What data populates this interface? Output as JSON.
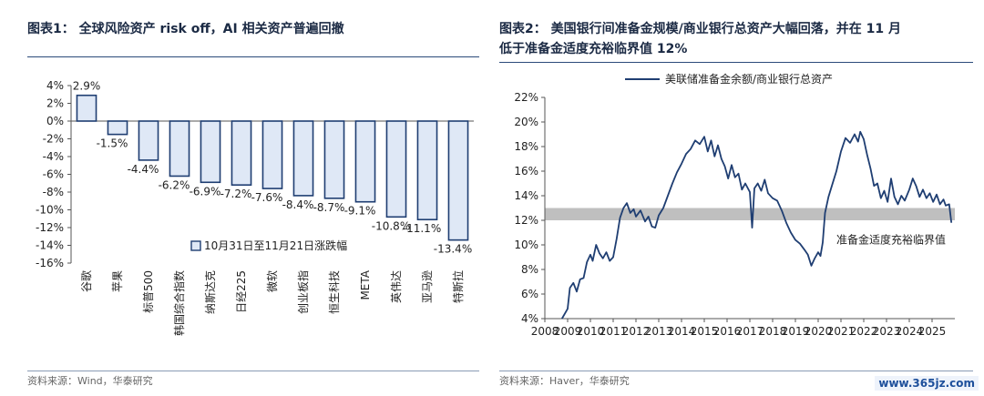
{
  "panels": {
    "left": {
      "title": "图表1： 全球风险资产 risk off，AI 相关资产普遍回撤",
      "source": "资料来源：Wind，华泰研究"
    },
    "right": {
      "title_line1": "图表2： 美国银行间准备金规模/商业银行总资产大幅回落，并在 11 月",
      "title_line2": "低于准备金适度充裕临界值 12%",
      "source": "资料来源：Haver，华泰研究"
    }
  },
  "watermark": "www.365jz.com",
  "colors": {
    "bar_fill": "#dfe8f6",
    "bar_stroke": "#1f3e72",
    "line": "#1f3e72",
    "band": "#bfbfbf"
  },
  "chart_data": [
    {
      "type": "bar",
      "categories": [
        "谷歌",
        "苹果",
        "标普500",
        "韩国综合指数",
        "纳斯达克",
        "日经225",
        "微软",
        "创业板指",
        "恒生科技",
        "META",
        "英伟达",
        "亚马逊",
        "特斯拉"
      ],
      "series": [
        {
          "name": "10月31日至11月21日涨跌幅",
          "values": [
            2.9,
            -1.5,
            -4.4,
            -6.2,
            -6.9,
            -7.2,
            -7.6,
            -8.4,
            -8.7,
            -9.1,
            -10.8,
            -11.1,
            -13.4
          ]
        }
      ],
      "data_labels": [
        "2.9%",
        "-1.5%",
        "-4.4%",
        "-6.2%",
        "-6.9%",
        "-7.2%",
        "-7.6%",
        "-8.4%",
        "-8.7%",
        "-9.1%",
        "-10.8%",
        "-11.1%",
        "-13.4%"
      ],
      "ylim": [
        -16,
        4
      ],
      "yticks": [
        4,
        2,
        0,
        -2,
        -4,
        -6,
        -8,
        -10,
        -12,
        -14,
        -16
      ],
      "ytick_labels": [
        "4%",
        "2%",
        "0%",
        "-2%",
        "-4%",
        "-6%",
        "-8%",
        "-10%",
        "-12%",
        "-14%",
        "-16%"
      ],
      "legend": "bottom-right",
      "grid": false
    },
    {
      "type": "line",
      "series": [
        {
          "name": "美联储准备金余额/商业银行总资产"
        }
      ],
      "points": [
        [
          2008.75,
          4.0
        ],
        [
          2009.0,
          4.8
        ],
        [
          2009.1,
          6.5
        ],
        [
          2009.25,
          6.9
        ],
        [
          2009.4,
          6.2
        ],
        [
          2009.55,
          7.2
        ],
        [
          2009.7,
          7.3
        ],
        [
          2009.85,
          8.6
        ],
        [
          2010.0,
          9.2
        ],
        [
          2010.1,
          8.7
        ],
        [
          2010.25,
          10.0
        ],
        [
          2010.4,
          9.3
        ],
        [
          2010.55,
          8.9
        ],
        [
          2010.7,
          9.4
        ],
        [
          2010.85,
          8.7
        ],
        [
          2011.0,
          9.0
        ],
        [
          2011.15,
          10.5
        ],
        [
          2011.3,
          12.2
        ],
        [
          2011.45,
          13.0
        ],
        [
          2011.6,
          13.4
        ],
        [
          2011.75,
          12.6
        ],
        [
          2011.9,
          12.9
        ],
        [
          2012.0,
          12.3
        ],
        [
          2012.2,
          12.8
        ],
        [
          2012.4,
          11.9
        ],
        [
          2012.55,
          12.3
        ],
        [
          2012.7,
          11.5
        ],
        [
          2012.85,
          11.4
        ],
        [
          2013.0,
          12.4
        ],
        [
          2013.2,
          13.0
        ],
        [
          2013.4,
          14.0
        ],
        [
          2013.6,
          15.0
        ],
        [
          2013.8,
          15.9
        ],
        [
          2014.0,
          16.6
        ],
        [
          2014.2,
          17.4
        ],
        [
          2014.4,
          17.8
        ],
        [
          2014.6,
          18.5
        ],
        [
          2014.8,
          18.2
        ],
        [
          2015.0,
          18.8
        ],
        [
          2015.15,
          17.6
        ],
        [
          2015.3,
          18.5
        ],
        [
          2015.45,
          17.2
        ],
        [
          2015.6,
          18.1
        ],
        [
          2015.75,
          17.0
        ],
        [
          2015.9,
          16.4
        ],
        [
          2016.05,
          15.4
        ],
        [
          2016.2,
          16.5
        ],
        [
          2016.35,
          15.5
        ],
        [
          2016.5,
          15.8
        ],
        [
          2016.65,
          14.5
        ],
        [
          2016.8,
          15.0
        ],
        [
          2017.0,
          14.3
        ],
        [
          2017.1,
          11.4
        ],
        [
          2017.2,
          14.6
        ],
        [
          2017.35,
          15.0
        ],
        [
          2017.5,
          14.4
        ],
        [
          2017.65,
          15.3
        ],
        [
          2017.8,
          14.2
        ],
        [
          2018.0,
          13.8
        ],
        [
          2018.2,
          13.6
        ],
        [
          2018.4,
          12.8
        ],
        [
          2018.6,
          11.8
        ],
        [
          2018.8,
          11.0
        ],
        [
          2019.0,
          10.4
        ],
        [
          2019.2,
          10.1
        ],
        [
          2019.4,
          9.6
        ],
        [
          2019.55,
          9.2
        ],
        [
          2019.7,
          8.3
        ],
        [
          2019.85,
          8.9
        ],
        [
          2020.0,
          9.4
        ],
        [
          2020.1,
          9.1
        ],
        [
          2020.2,
          10.2
        ],
        [
          2020.3,
          12.6
        ],
        [
          2020.45,
          13.9
        ],
        [
          2020.6,
          14.8
        ],
        [
          2020.8,
          16.0
        ],
        [
          2021.0,
          17.6
        ],
        [
          2021.2,
          18.7
        ],
        [
          2021.4,
          18.3
        ],
        [
          2021.6,
          19.0
        ],
        [
          2021.75,
          18.4
        ],
        [
          2021.85,
          19.2
        ],
        [
          2022.0,
          18.6
        ],
        [
          2022.15,
          17.3
        ],
        [
          2022.3,
          16.2
        ],
        [
          2022.45,
          14.8
        ],
        [
          2022.6,
          15.0
        ],
        [
          2022.75,
          13.8
        ],
        [
          2022.9,
          14.4
        ],
        [
          2023.05,
          13.5
        ],
        [
          2023.2,
          15.4
        ],
        [
          2023.35,
          13.9
        ],
        [
          2023.5,
          13.3
        ],
        [
          2023.65,
          14.0
        ],
        [
          2023.8,
          13.6
        ],
        [
          2024.0,
          14.5
        ],
        [
          2024.15,
          15.4
        ],
        [
          2024.3,
          14.8
        ],
        [
          2024.45,
          13.9
        ],
        [
          2024.6,
          14.5
        ],
        [
          2024.75,
          13.8
        ],
        [
          2024.9,
          14.2
        ],
        [
          2025.05,
          13.5
        ],
        [
          2025.2,
          14.1
        ],
        [
          2025.35,
          13.3
        ],
        [
          2025.5,
          13.7
        ],
        [
          2025.6,
          13.2
        ],
        [
          2025.75,
          13.3
        ],
        [
          2025.85,
          11.8
        ]
      ],
      "band": {
        "from": 12,
        "to": 13
      },
      "annotation": "准备金适度充裕临界值",
      "xlim": [
        2008,
        2026
      ],
      "ylim": [
        4,
        22
      ],
      "xticks": [
        "2008",
        "2009",
        "2010",
        "2011",
        "2012",
        "2013",
        "2014",
        "2015",
        "2016",
        "2017",
        "2018",
        "2019",
        "2020",
        "2021",
        "2022",
        "2023",
        "2024",
        "2025"
      ],
      "yticks": [
        22,
        20,
        18,
        16,
        14,
        12,
        10,
        8,
        6,
        4
      ],
      "ytick_labels": [
        "22%",
        "20%",
        "18%",
        "16%",
        "14%",
        "12%",
        "10%",
        "8%",
        "6%",
        "4%"
      ],
      "legend": "top-center",
      "grid": false
    }
  ]
}
